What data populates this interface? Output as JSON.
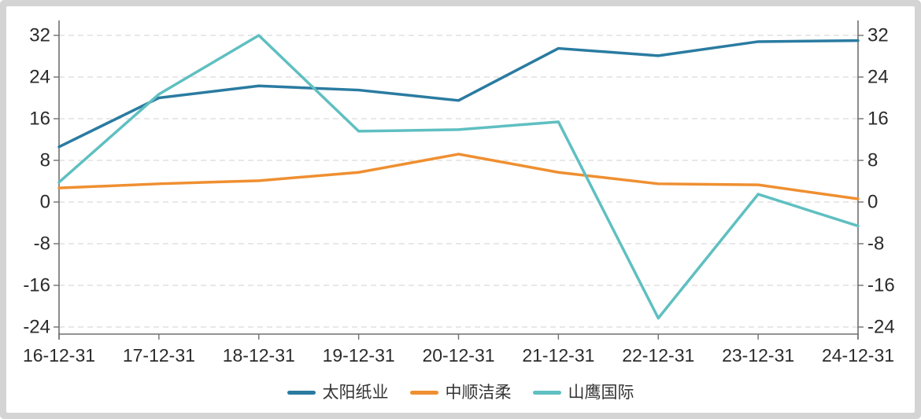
{
  "chart_data": {
    "type": "line",
    "categories": [
      "16-12-31",
      "17-12-31",
      "18-12-31",
      "19-12-31",
      "20-12-31",
      "21-12-31",
      "22-12-31",
      "23-12-31",
      "24-12-31"
    ],
    "series": [
      {
        "name": "太阳纸业",
        "color": "#2a7ba1",
        "values": [
          10.6,
          20.0,
          22.3,
          21.5,
          19.5,
          29.5,
          28.1,
          30.8,
          31.0
        ]
      },
      {
        "name": "中顺洁柔",
        "color": "#ef8f31",
        "values": [
          2.7,
          3.5,
          4.1,
          5.7,
          9.2,
          5.7,
          3.5,
          3.3,
          0.6
        ]
      },
      {
        "name": "山鹰国际",
        "color": "#5fbfc1",
        "values": [
          3.8,
          20.7,
          32.0,
          13.6,
          13.9,
          15.4,
          -22.3,
          1.5,
          -4.6
        ]
      }
    ],
    "y_ticks": [
      32,
      24,
      16,
      8,
      0,
      -8,
      -16,
      -24
    ],
    "ylim": [
      -25.4,
      34.9
    ],
    "dual_y_axis": true,
    "grid": "horizontal-dashed",
    "legend_position": "bottom",
    "colors": {
      "axis": "#707070",
      "grid": "#e1e1e1",
      "tick_label": "#2b2b2b",
      "legend_label": "#333333",
      "frame": "#d4d4d4",
      "background": "#ffffff"
    }
  }
}
